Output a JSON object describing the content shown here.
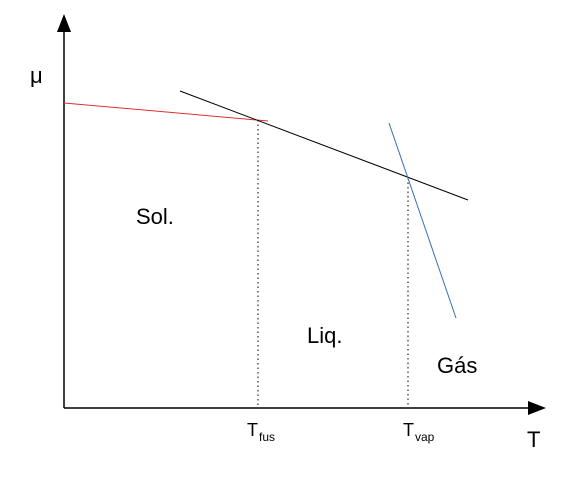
{
  "axes": {
    "y_label": "μ",
    "x_label": "T"
  },
  "regions": {
    "solid": "Sol.",
    "liquid": "Liq.",
    "gas": "Gás"
  },
  "ticks": {
    "fusion": {
      "main": "T",
      "sub": "fus"
    },
    "vaporization": {
      "main": "T",
      "sub": "vap"
    }
  },
  "colors": {
    "solid_line": "#e03030",
    "liquid_line": "#000000",
    "gas_line": "#3a6fb0",
    "axis": "#000000",
    "guide": "#000000"
  }
}
